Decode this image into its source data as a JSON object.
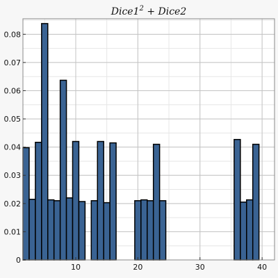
{
  "chart_data": {
    "type": "bar",
    "title": "Dice1",
    "title_sup": "2",
    "title_rest": " + Dice2",
    "xlabel": "",
    "ylabel": "",
    "xlim": [
      1.5,
      42
    ],
    "ylim": [
      0,
      0.0855
    ],
    "grid": true,
    "bar_color": "#3a6393",
    "x_ticks": [
      10,
      20,
      30,
      40
    ],
    "y_ticks": [
      0,
      0.01,
      0.02,
      0.03,
      0.04,
      0.05,
      0.06,
      0.07,
      0.08
    ],
    "y_tick_labels": [
      "0",
      "0.01",
      "0.02",
      "0.03",
      "0.04",
      "0.05",
      "0.06",
      "0.07",
      "0.08"
    ],
    "x": [
      2,
      3,
      4,
      5,
      6,
      7,
      8,
      9,
      10,
      11,
      12,
      13,
      14,
      15,
      16,
      17,
      18,
      19,
      20,
      21,
      22,
      23,
      24,
      25,
      26,
      27,
      28,
      29,
      30,
      31,
      32,
      33,
      34,
      35,
      36,
      37,
      38,
      39,
      40,
      41
    ],
    "values": [
      0.0398,
      0.0215,
      0.0417,
      0.0838,
      0.0213,
      0.021,
      0.0637,
      0.022,
      0.042,
      0.0207,
      0,
      0.021,
      0.042,
      0.0203,
      0.0415,
      0,
      0,
      0,
      0.021,
      0.0213,
      0.021,
      0.041,
      0.021,
      0,
      0,
      0,
      0,
      0,
      0,
      0,
      0,
      0,
      0,
      0,
      0.0427,
      0.0205,
      0.0213,
      0.041,
      0,
      0
    ]
  }
}
